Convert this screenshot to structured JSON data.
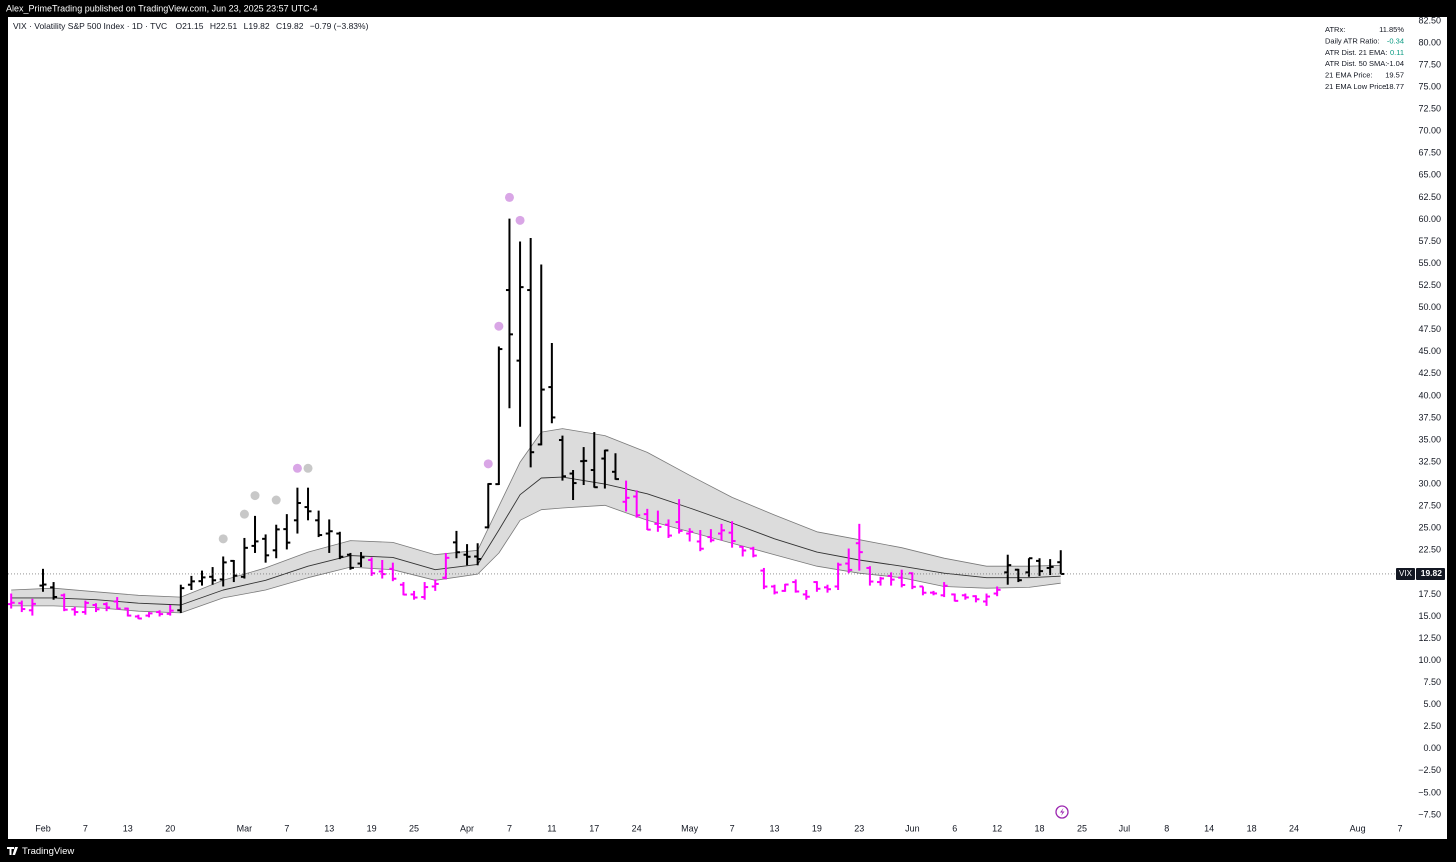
{
  "header": {
    "publisher": "Alex_PrimeTrading published on TradingView.com, Jun 23, 2025 23:57 UTC-4"
  },
  "footer": {
    "brand": "TradingView"
  },
  "chart_data": {
    "type": "ohlc",
    "title": "VIX · Volatility S&P 500 Index · 1D · TVC",
    "ohlc_labels": [
      "O",
      "H",
      "L",
      "C"
    ],
    "change": "−0.79 (−3.83%)",
    "last_price_label": "VIX",
    "open": [
      16.4,
      16.5,
      15.7,
      18.5,
      18.3,
      17.4,
      15.8,
      15.5,
      16.3,
      16.4,
      16.7,
      15.9,
      15.0,
      15.1,
      15.5,
      15.3,
      15.7,
      18.6,
      19.0,
      19.5,
      19.2,
      21.3,
      19.5,
      23.0,
      23.8,
      22.5,
      24.9,
      25.9,
      27.4,
      25.9,
      24.4,
      24.4,
      22.0,
      21.0,
      21.4,
      20.1,
      20.4,
      18.6,
      17.5,
      17.2,
      18.4,
      19.4,
      23.4,
      22.0,
      21.8,
      25.1,
      30.0,
      52.0,
      44.0,
      52.0,
      34.5,
      41.0,
      35.0,
      31.2,
      32.6,
      31.6,
      32.9,
      31.4,
      28.0,
      28.6,
      26.6,
      25.5,
      25.4,
      25.7,
      24.4,
      23.5,
      24.0,
      24.4,
      24.5,
      22.9,
      22.7,
      20.2,
      18.4,
      17.9,
      18.9,
      17.5,
      18.9,
      18.3,
      18.4,
      21.0,
      23.3,
      20.5,
      18.9,
      19.6,
      19.4,
      19.9,
      18.4,
      17.7,
      17.4,
      17.5,
      17.4,
      17.3,
      16.7,
      17.6,
      20.0,
      20.3,
      20.0,
      21.3,
      20.5,
      21.15
    ],
    "high": [
      17.6,
      16.8,
      17.0,
      20.4,
      18.9,
      17.6,
      16.1,
      16.8,
      16.5,
      16.6,
      17.2,
      16.0,
      15.2,
      15.5,
      15.7,
      16.3,
      18.6,
      19.6,
      20.2,
      20.6,
      21.8,
      21.4,
      23.9,
      26.4,
      24.3,
      25.4,
      26.6,
      29.6,
      29.6,
      27.0,
      26.0,
      24.6,
      22.2,
      22.3,
      21.7,
      21.4,
      21.1,
      18.9,
      17.9,
      18.9,
      19.2,
      22.2,
      24.7,
      23.2,
      23.3,
      30.1,
      45.6,
      60.1,
      57.5,
      57.9,
      54.9,
      46.0,
      35.5,
      31.6,
      34.2,
      35.9,
      33.9,
      33.5,
      30.4,
      29.3,
      27.2,
      27.0,
      26.0,
      28.3,
      25.0,
      24.8,
      24.9,
      25.5,
      25.8,
      23.0,
      22.9,
      20.5,
      18.6,
      18.7,
      19.2,
      18.0,
      19.0,
      18.6,
      21.1,
      22.7,
      25.5,
      20.7,
      19.5,
      20.0,
      20.3,
      20.0,
      18.4,
      17.9,
      18.9,
      17.6,
      17.6,
      17.4,
      17.6,
      18.4,
      22.0,
      20.4,
      21.6,
      21.6,
      21.5,
      22.51
    ],
    "low": [
      15.9,
      15.5,
      15.1,
      17.8,
      16.9,
      15.6,
      15.1,
      15.2,
      15.5,
      15.6,
      15.8,
      15.0,
      14.7,
      14.9,
      15.0,
      15.1,
      15.4,
      18.0,
      18.5,
      18.6,
      18.4,
      18.9,
      19.3,
      22.2,
      21.1,
      21.6,
      22.6,
      24.4,
      25.9,
      24.0,
      22.2,
      21.5,
      20.3,
      20.6,
      19.6,
      19.3,
      19.0,
      17.4,
      16.9,
      16.9,
      17.9,
      19.2,
      21.6,
      20.8,
      20.8,
      25.0,
      29.9,
      38.6,
      36.5,
      31.9,
      34.4,
      36.9,
      30.4,
      28.2,
      29.9,
      29.6,
      29.5,
      30.5,
      26.9,
      26.2,
      24.8,
      24.6,
      23.9,
      24.4,
      23.5,
      22.4,
      23.4,
      23.6,
      22.8,
      21.8,
      21.7,
      18.1,
      17.5,
      17.8,
      17.7,
      16.9,
      17.8,
      17.7,
      18.0,
      19.9,
      20.2,
      18.5,
      18.5,
      18.5,
      18.3,
      18.1,
      17.4,
      17.4,
      17.2,
      16.7,
      16.9,
      16.6,
      16.2,
      17.3,
      18.6,
      18.9,
      19.5,
      19.6,
      19.7,
      19.82
    ],
    "close": [
      16.56,
      15.84,
      16.43,
      18.62,
      17.21,
      15.77,
      15.5,
      16.54,
      15.81,
      16.02,
      15.89,
      15.1,
      14.77,
      15.35,
      15.27,
      15.66,
      18.21,
      18.98,
      19.43,
      19.1,
      21.13,
      19.63,
      22.78,
      23.51,
      21.93,
      24.87,
      23.37,
      27.86,
      26.92,
      24.23,
      24.66,
      21.77,
      20.51,
      21.7,
      19.9,
      19.8,
      19.28,
      17.48,
      17.15,
      18.33,
      18.69,
      21.65,
      22.28,
      21.77,
      21.51,
      30.02,
      45.31,
      46.98,
      52.33,
      33.62,
      40.72,
      37.56,
      30.89,
      30.12,
      32.64,
      29.65,
      33.82,
      30.57,
      28.45,
      26.47,
      24.84,
      25.15,
      24.17,
      24.7,
      24.6,
      22.68,
      23.64,
      24.76,
      23.55,
      22.48,
      21.9,
      18.39,
      17.72,
      18.62,
      17.83,
      17.24,
      18.14,
      18.09,
      20.87,
      20.28,
      22.29,
      18.96,
      19.31,
      19.18,
      18.57,
      18.36,
      17.69,
      17.61,
      18.48,
      16.77,
      17.16,
      16.95,
      17.26,
      18.02,
      20.82,
      19.11,
      21.6,
      20.14,
      20.62,
      19.82
    ],
    "bar_colors": [
      "#ff00ff",
      "#ff00ff",
      "#ff00ff",
      "#000000",
      "#000000",
      "#ff00ff",
      "#ff00ff",
      "#ff00ff",
      "#ff00ff",
      "#ff00ff",
      "#ff00ff",
      "#ff00ff",
      "#ff00ff",
      "#ff00ff",
      "#ff00ff",
      "#ff00ff",
      "#000000",
      "#000000",
      "#000000",
      "#000000",
      "#000000",
      "#000000",
      "#000000",
      "#000000",
      "#000000",
      "#000000",
      "#000000",
      "#000000",
      "#000000",
      "#000000",
      "#000000",
      "#000000",
      "#000000",
      "#000000",
      "#ff00ff",
      "#ff00ff",
      "#ff00ff",
      "#ff00ff",
      "#ff00ff",
      "#ff00ff",
      "#ff00ff",
      "#ff00ff",
      "#000000",
      "#000000",
      "#000000",
      "#000000",
      "#000000",
      "#000000",
      "#000000",
      "#000000",
      "#000000",
      "#000000",
      "#000000",
      "#000000",
      "#000000",
      "#000000",
      "#000000",
      "#000000",
      "#ff00ff",
      "#ff00ff",
      "#ff00ff",
      "#ff00ff",
      "#ff00ff",
      "#ff00ff",
      "#ff00ff",
      "#ff00ff",
      "#ff00ff",
      "#ff00ff",
      "#ff00ff",
      "#ff00ff",
      "#ff00ff",
      "#ff00ff",
      "#ff00ff",
      "#ff00ff",
      "#ff00ff",
      "#ff00ff",
      "#ff00ff",
      "#ff00ff",
      "#ff00ff",
      "#ff00ff",
      "#ff00ff",
      "#ff00ff",
      "#ff00ff",
      "#ff00ff",
      "#ff00ff",
      "#ff00ff",
      "#ff00ff",
      "#ff00ff",
      "#ff00ff",
      "#ff00ff",
      "#ff00ff",
      "#ff00ff",
      "#ff00ff",
      "#ff00ff",
      "#000000",
      "#000000",
      "#000000",
      "#000000",
      "#000000",
      "#000000"
    ],
    "bands": {
      "x": [
        0,
        4,
        8,
        12,
        16,
        20,
        24,
        28,
        32,
        36,
        40,
        44,
        46,
        48,
        50,
        52,
        56,
        60,
        64,
        68,
        72,
        76,
        80,
        84,
        88,
        92,
        96,
        99
      ],
      "upper": [
        18.0,
        18.2,
        17.8,
        17.4,
        17.2,
        19.1,
        20.5,
        22.3,
        23.6,
        23.4,
        22.0,
        22.5,
        27.5,
        32.5,
        35.9,
        36.3,
        35.5,
        33.6,
        31.0,
        28.5,
        26.5,
        24.6,
        23.7,
        22.8,
        21.6,
        20.7,
        20.7,
        20.8
      ],
      "ema": [
        17.1,
        17.1,
        16.9,
        16.5,
        16.3,
        18.0,
        19.1,
        20.7,
        21.9,
        21.7,
        20.3,
        20.9,
        24.8,
        28.8,
        30.7,
        30.8,
        30.0,
        28.9,
        27.3,
        25.6,
        23.8,
        22.3,
        21.4,
        20.7,
        19.9,
        19.4,
        19.4,
        19.57
      ],
      "lower": [
        16.2,
        16.2,
        16.0,
        15.6,
        15.4,
        17.1,
        18.0,
        19.4,
        20.6,
        20.3,
        19.1,
        19.8,
        22.2,
        25.9,
        27.1,
        27.3,
        27.6,
        25.9,
        24.6,
        23.3,
        22.0,
        20.7,
        19.9,
        19.4,
        18.4,
        18.2,
        18.3,
        18.77
      ],
      "fill": "#dcdcdc",
      "edge": "#7a7a7a",
      "ema_color": "#333333"
    },
    "markers": [
      {
        "x": 20,
        "y": 23.8,
        "color": "#c8c8c8"
      },
      {
        "x": 22,
        "y": 26.6,
        "color": "#c8c8c8"
      },
      {
        "x": 23,
        "y": 28.7,
        "color": "#c8c8c8"
      },
      {
        "x": 25,
        "y": 28.2,
        "color": "#c8c8c8"
      },
      {
        "x": 27,
        "y": 31.8,
        "color": "#d9a6e6"
      },
      {
        "x": 28,
        "y": 31.8,
        "color": "#c8c8c8"
      },
      {
        "x": 45,
        "y": 32.3,
        "color": "#d9a6e6"
      },
      {
        "x": 46,
        "y": 47.9,
        "color": "#d9a6e6"
      },
      {
        "x": 47,
        "y": 62.5,
        "color": "#d9a6e6"
      },
      {
        "x": 48,
        "y": 59.9,
        "color": "#d9a6e6"
      }
    ],
    "xlim": [
      -0.3,
      131
    ],
    "xticks": [
      {
        "value": 3,
        "label": "Feb"
      },
      {
        "value": 7,
        "label": "7"
      },
      {
        "value": 11,
        "label": "13"
      },
      {
        "value": 15,
        "label": "20"
      },
      {
        "value": 22,
        "label": "Mar"
      },
      {
        "value": 26,
        "label": "7"
      },
      {
        "value": 30,
        "label": "13"
      },
      {
        "value": 34,
        "label": "19"
      },
      {
        "value": 38,
        "label": "25"
      },
      {
        "value": 43,
        "label": "Apr"
      },
      {
        "value": 47,
        "label": "7"
      },
      {
        "value": 51,
        "label": "11"
      },
      {
        "value": 55,
        "label": "17"
      },
      {
        "value": 59,
        "label": "24"
      },
      {
        "value": 64,
        "label": "May"
      },
      {
        "value": 68,
        "label": "7"
      },
      {
        "value": 72,
        "label": "13"
      },
      {
        "value": 76,
        "label": "19"
      },
      {
        "value": 80,
        "label": "23"
      },
      {
        "value": 85,
        "label": "Jun"
      },
      {
        "value": 89,
        "label": "6"
      },
      {
        "value": 93,
        "label": "12"
      },
      {
        "value": 97,
        "label": "18"
      },
      {
        "value": 101,
        "label": "25"
      },
      {
        "value": 105,
        "label": "Jul"
      },
      {
        "value": 109,
        "label": "8"
      },
      {
        "value": 113,
        "label": "14"
      },
      {
        "value": 117,
        "label": "18"
      },
      {
        "value": 121,
        "label": "24"
      },
      {
        "value": 127,
        "label": "Aug"
      },
      {
        "value": 131,
        "label": "7"
      }
    ],
    "ylim": [
      -8.07,
      82.95
    ],
    "yticks": [
      {
        "value": 82.5,
        "label": "82.50"
      },
      {
        "value": 80,
        "label": "80.00"
      },
      {
        "value": 77.5,
        "label": "77.50"
      },
      {
        "value": 75,
        "label": "75.00"
      },
      {
        "value": 72.5,
        "label": "72.50"
      },
      {
        "value": 70,
        "label": "70.00"
      },
      {
        "value": 67.5,
        "label": "67.50"
      },
      {
        "value": 65,
        "label": "65.00"
      },
      {
        "value": 62.5,
        "label": "62.50"
      },
      {
        "value": 60,
        "label": "60.00"
      },
      {
        "value": 57.5,
        "label": "57.50"
      },
      {
        "value": 55,
        "label": "55.00"
      },
      {
        "value": 52.5,
        "label": "52.50"
      },
      {
        "value": 50,
        "label": "50.00"
      },
      {
        "value": 47.5,
        "label": "47.50"
      },
      {
        "value": 45,
        "label": "45.00"
      },
      {
        "value": 42.5,
        "label": "42.50"
      },
      {
        "value": 40,
        "label": "40.00"
      },
      {
        "value": 37.5,
        "label": "37.50"
      },
      {
        "value": 35,
        "label": "35.00"
      },
      {
        "value": 32.5,
        "label": "32.50"
      },
      {
        "value": 30,
        "label": "30.00"
      },
      {
        "value": 27.5,
        "label": "27.50"
      },
      {
        "value": 25,
        "label": "25.00"
      },
      {
        "value": 22.5,
        "label": "22.50"
      },
      {
        "value": 20,
        "label": "20.00"
      },
      {
        "value": 17.5,
        "label": "17.50"
      },
      {
        "value": 15,
        "label": "15.00"
      },
      {
        "value": 12.5,
        "label": "12.50"
      },
      {
        "value": 10,
        "label": "10.00"
      },
      {
        "value": 7.5,
        "label": "7.50"
      },
      {
        "value": 5,
        "label": "5.00"
      },
      {
        "value": 2.5,
        "label": "2.50"
      },
      {
        "value": 0,
        "label": "0.00"
      },
      {
        "value": -2.5,
        "label": "−2.50"
      },
      {
        "value": -5,
        "label": "−5.00"
      },
      {
        "value": -7.5,
        "label": "−7.50"
      }
    ],
    "grid": false
  },
  "info_panel": {
    "rows": [
      {
        "label": "ATRx:",
        "value": "11.85%",
        "color": "#131722"
      },
      {
        "label": "Daily ATR Ratio:",
        "value": "-0.34",
        "color": "#089981"
      },
      {
        "label": "ATR Dist. 21 EMA:",
        "value": "0.11",
        "color": "#089981"
      },
      {
        "label": "ATR Dist. 50 SMA:",
        "value": "-1.04",
        "color": "#131722"
      },
      {
        "label": "21 EMA Price:",
        "value": "19.57",
        "color": "#131722"
      },
      {
        "label": "21 EMA Low Price:",
        "value": "18.77",
        "color": "#131722"
      }
    ]
  }
}
